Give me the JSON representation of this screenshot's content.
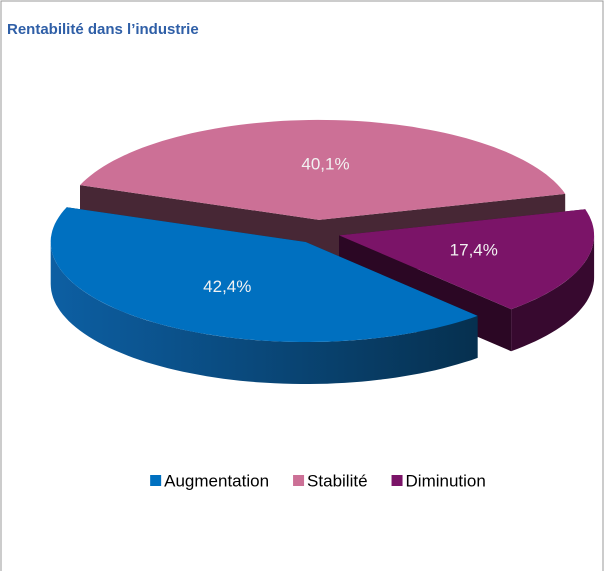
{
  "chart_data": {
    "type": "pie",
    "title": "Rentabilité dans l’industrie",
    "categories": [
      "Augmentation",
      "Stabilité",
      "Diminution"
    ],
    "values": [
      42.4,
      40.1,
      17.4
    ],
    "value_labels": [
      "42,4%",
      "40,1%",
      "17,4%"
    ],
    "colors": [
      "#0070c0",
      "#cc7096",
      "#7b1468"
    ],
    "legend": "bottom"
  }
}
